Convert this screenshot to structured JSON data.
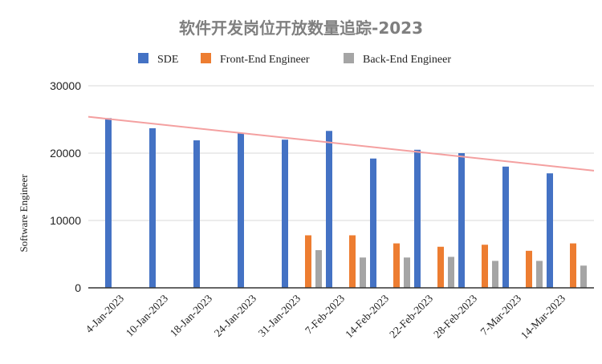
{
  "chart_data": {
    "type": "bar",
    "title": "软件开发岗位开放数量追踪-2023",
    "ylabel": "Software Engineer",
    "xlabel": "",
    "ylim": [
      0,
      30000
    ],
    "yticks": [
      0,
      10000,
      20000,
      30000
    ],
    "grid": true,
    "legend_position": "top",
    "categories": [
      "4-Jan-2023",
      "10-Jan-2023",
      "18-Jan-2023",
      "24-Jan-2023",
      "31-Jan-2023",
      "7-Feb-2023",
      "14-Feb-2023",
      "22-Feb-2023",
      "28-Feb-2023",
      "7-Mar-2023",
      "14-Mar-2023"
    ],
    "series": [
      {
        "name": "SDE",
        "color": "#4472c4",
        "values": [
          25200,
          23700,
          21900,
          23000,
          22000,
          23300,
          19200,
          20500,
          20000,
          18000,
          17000
        ]
      },
      {
        "name": "Front-End Engineer",
        "color": "#ed7d31",
        "values": [
          null,
          null,
          null,
          null,
          7800,
          7800,
          6600,
          6100,
          6400,
          5500,
          6600
        ]
      },
      {
        "name": "Back-End Engineer",
        "color": "#a5a5a5",
        "values": [
          null,
          null,
          null,
          null,
          5600,
          4500,
          4500,
          4600,
          4000,
          4000,
          3300
        ]
      }
    ],
    "trendline": {
      "series": "SDE",
      "color": "#f4a0a0",
      "start_value": 25400,
      "end_value": 17400
    }
  }
}
